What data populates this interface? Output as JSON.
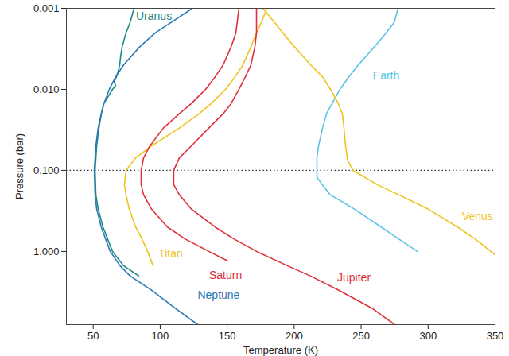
{
  "chart_data": {
    "type": "line",
    "xlabel": "Temperature (K)",
    "ylabel": "Pressure (bar)",
    "log": "y",
    "grid": false,
    "xlim": [
      30,
      350
    ],
    "xticks": [
      50,
      100,
      150,
      200,
      250,
      300,
      350
    ],
    "ylim": [
      0.001,
      8
    ],
    "yticks": [
      0.001,
      {
        "value": 0.01,
        "label": "0.010"
      },
      {
        "value": 0.1,
        "label": "0.100"
      },
      {
        "value": 1,
        "label": "1.000"
      }
    ],
    "hline": {
      "y": 0.1,
      "line_style": "dotted",
      "color": "#333333"
    },
    "series": [
      {
        "name": "Uranus",
        "color": "#1b8a86",
        "x": [
          80.5,
          77.5,
          74.5,
          71.6,
          70.4,
          69.8,
          68.6,
          67.4,
          65.6,
          66.8,
          64.4,
          61.5,
          57.9,
          56.1,
          54.3,
          52.6,
          51.4,
          52,
          53.7,
          57.3,
          64.4,
          72.7,
          84
        ],
        "y": [
          0.001,
          0.0015,
          0.002,
          0.003,
          0.004,
          0.005,
          0.006,
          0.007,
          0.008,
          0.009,
          0.01,
          0.012,
          0.015,
          0.02,
          0.03,
          0.05,
          0.1,
          0.2,
          0.3,
          0.5,
          1,
          1.5,
          2
        ]
      },
      {
        "name": "Neptune",
        "color": "#2a78b5",
        "x": [
          124,
          108,
          96.5,
          84.6,
          72.7,
          66.8,
          62,
          58,
          56,
          53.7,
          52,
          50.8,
          51.4,
          52.6,
          56,
          62.7,
          70,
          77.5,
          93.5,
          111,
          128
        ],
        "y": [
          0.001,
          0.0015,
          0.002,
          0.003,
          0.005,
          0.007,
          0.01,
          0.015,
          0.02,
          0.03,
          0.05,
          0.1,
          0.2,
          0.3,
          0.5,
          1,
          1.5,
          2,
          3,
          5,
          8
        ]
      },
      {
        "name": "Titan",
        "color": "#efc41f",
        "x": [
          179.6,
          175.5,
          171.9,
          167.7,
          161.8,
          155.9,
          148.7,
          138,
          129,
          114.3,
          93.5,
          81.7,
          74.5,
          73.3,
          74.5,
          76.9,
          81.7,
          86.4,
          90.6,
          94.7
        ],
        "y": [
          0.001,
          0.0015,
          0.002,
          0.003,
          0.005,
          0.007,
          0.01,
          0.015,
          0.02,
          0.03,
          0.05,
          0.07,
          0.1,
          0.15,
          0.2,
          0.3,
          0.5,
          0.7,
          1,
          1.5
        ]
      },
      {
        "name": "Saturn",
        "color": "#e0303c",
        "x": [
          158.8,
          156.5,
          152.9,
          147,
          141,
          133.9,
          123.2,
          114.3,
          102.4,
          92.3,
          87.6,
          85.8,
          85.8,
          87.6,
          93.5,
          105.4,
          118.5,
          136.3,
          150
        ],
        "y": [
          0.001,
          0.002,
          0.003,
          0.005,
          0.007,
          0.01,
          0.015,
          0.02,
          0.03,
          0.05,
          0.07,
          0.1,
          0.15,
          0.2,
          0.3,
          0.5,
          0.7,
          1,
          1.3
        ]
      },
      {
        "name": "Jupiter",
        "color": "#e0303c",
        "x": [
          171.9,
          171.9,
          170.7,
          167.7,
          163.6,
          158.8,
          152.9,
          147,
          136.3,
          123.2,
          114.3,
          110.1,
          110.1,
          114.3,
          123.2,
          141,
          155,
          172,
          195,
          212,
          233,
          258,
          275
        ],
        "y": [
          0.001,
          0.002,
          0.003,
          0.005,
          0.007,
          0.01,
          0.015,
          0.02,
          0.03,
          0.05,
          0.07,
          0.1,
          0.15,
          0.2,
          0.3,
          0.5,
          0.7,
          1,
          1.5,
          2,
          3,
          5,
          8
        ]
      },
      {
        "name": "Earth",
        "color": "#5bc3e6",
        "x": [
          277.6,
          274.6,
          268.7,
          259.8,
          247.9,
          240.8,
          234.2,
          228.3,
          224.1,
          221.2,
          218.2,
          217,
          217,
          217,
          218.2,
          221,
          227,
          245,
          265,
          278,
          292
        ],
        "y": [
          0.001,
          0.0015,
          0.002,
          0.003,
          0.005,
          0.007,
          0.01,
          0.015,
          0.02,
          0.03,
          0.05,
          0.07,
          0.1,
          0.12,
          0.13,
          0.15,
          0.2,
          0.3,
          0.5,
          0.7,
          1
        ]
      },
      {
        "name": "Venus",
        "color": "#efc41f",
        "x": [
          176.6,
          185.5,
          191.5,
          200.4,
          212.3,
          221.2,
          227.1,
          233,
          236,
          237.2,
          238.4,
          239.6,
          240.8,
          244,
          262,
          278,
          300,
          322,
          335,
          350
        ],
        "y": [
          0.001,
          0.0015,
          0.002,
          0.003,
          0.005,
          0.007,
          0.01,
          0.015,
          0.02,
          0.03,
          0.05,
          0.07,
          0.08,
          0.1,
          0.15,
          0.2,
          0.3,
          0.5,
          0.7,
          1.1
        ]
      }
    ]
  }
}
